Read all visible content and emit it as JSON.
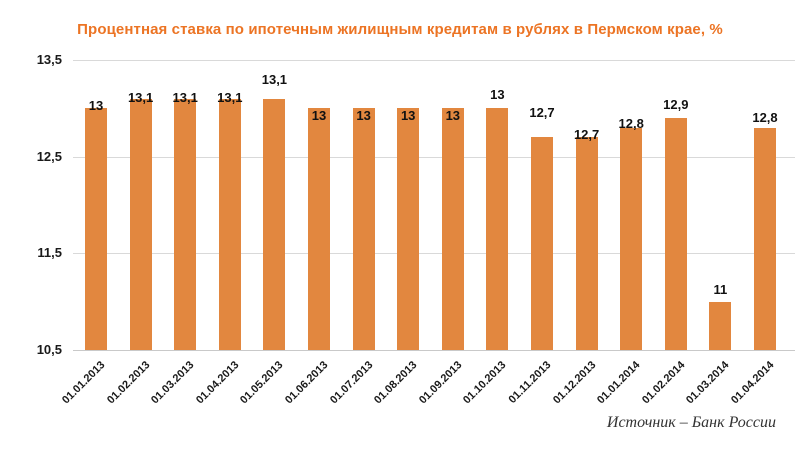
{
  "source": "Источник – Банк России",
  "colors": {
    "bar": "#E2873F",
    "title": "#EC7424",
    "grid": "#D9D9D9",
    "text": "#1A1A1A"
  },
  "chart_data": {
    "type": "bar",
    "title": "Процентная ставка по ипотечным жилищным кредитам в рублях в Пермском крае, %",
    "categories": [
      "01.01.2013",
      "01.02.2013",
      "01.03.2013",
      "01.04.2013",
      "01.05.2013",
      "01.06.2013",
      "01.07.2013",
      "01.08.2013",
      "01.09.2013",
      "01.10.2013",
      "01.11.2013",
      "01.12.2013",
      "01.01.2014",
      "01.02.2014",
      "01.03.2014",
      "01.04.2014"
    ],
    "values": [
      13,
      13.1,
      13.1,
      13.1,
      13.1,
      13,
      13,
      13,
      13,
      13,
      12.7,
      12.7,
      12.8,
      12.9,
      11,
      12.8
    ],
    "point_labels": [
      "13",
      "13,1",
      "13,1",
      "13,1",
      "13,1",
      "13",
      "13",
      "13",
      "13",
      "13",
      "12,7",
      "12,7",
      "12,8",
      "12,9",
      "11",
      "12,8"
    ],
    "xlabel": "",
    "ylabel": "",
    "ylim": [
      10.5,
      13.5
    ],
    "yticks": [
      13.5,
      12.5,
      11.5,
      10.5
    ],
    "ytick_labels": [
      "13,5",
      "12,5",
      "11,5",
      "10,5"
    ],
    "grid": true,
    "legend": "none",
    "bar_baseline": 10.5
  }
}
